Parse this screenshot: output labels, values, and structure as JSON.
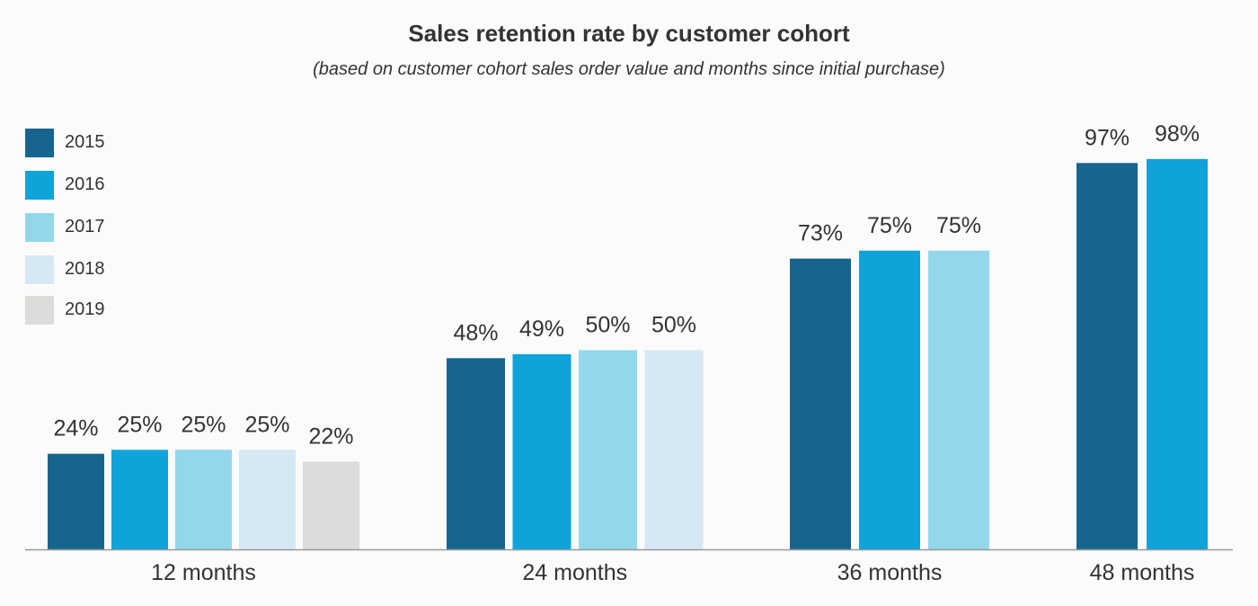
{
  "chart_data": {
    "type": "bar",
    "title": "Sales retention rate by customer cohort",
    "subtitle": "(based on customer cohort sales order value and months since initial purchase)",
    "xlabel": "",
    "ylabel": "",
    "ylim": [
      0,
      100
    ],
    "grid": false,
    "legend_position": "top-left",
    "categories": [
      "12 months",
      "24 months",
      "36 months",
      "48 months"
    ],
    "series": [
      {
        "name": "2015",
        "color": "#17658f",
        "values": [
          24,
          48,
          73,
          97
        ],
        "labels": [
          "24%",
          "48%",
          "73%",
          "97%"
        ]
      },
      {
        "name": "2016",
        "color": "#0fa3da",
        "values": [
          25,
          49,
          75,
          98
        ],
        "labels": [
          "25%",
          "49%",
          "75%",
          "98%"
        ]
      },
      {
        "name": "2017",
        "color": "#93d7eb",
        "values": [
          25,
          50,
          75,
          null
        ],
        "labels": [
          "25%",
          "50%",
          "75%",
          null
        ]
      },
      {
        "name": "2018",
        "color": "#d5e8f3",
        "values": [
          25,
          50,
          null,
          null
        ],
        "labels": [
          "25%",
          "50%",
          null,
          null
        ]
      },
      {
        "name": "2019",
        "color": "#dedcda",
        "values": [
          22,
          null,
          null,
          null
        ],
        "labels": [
          "22%",
          null,
          null,
          null
        ]
      }
    ]
  }
}
